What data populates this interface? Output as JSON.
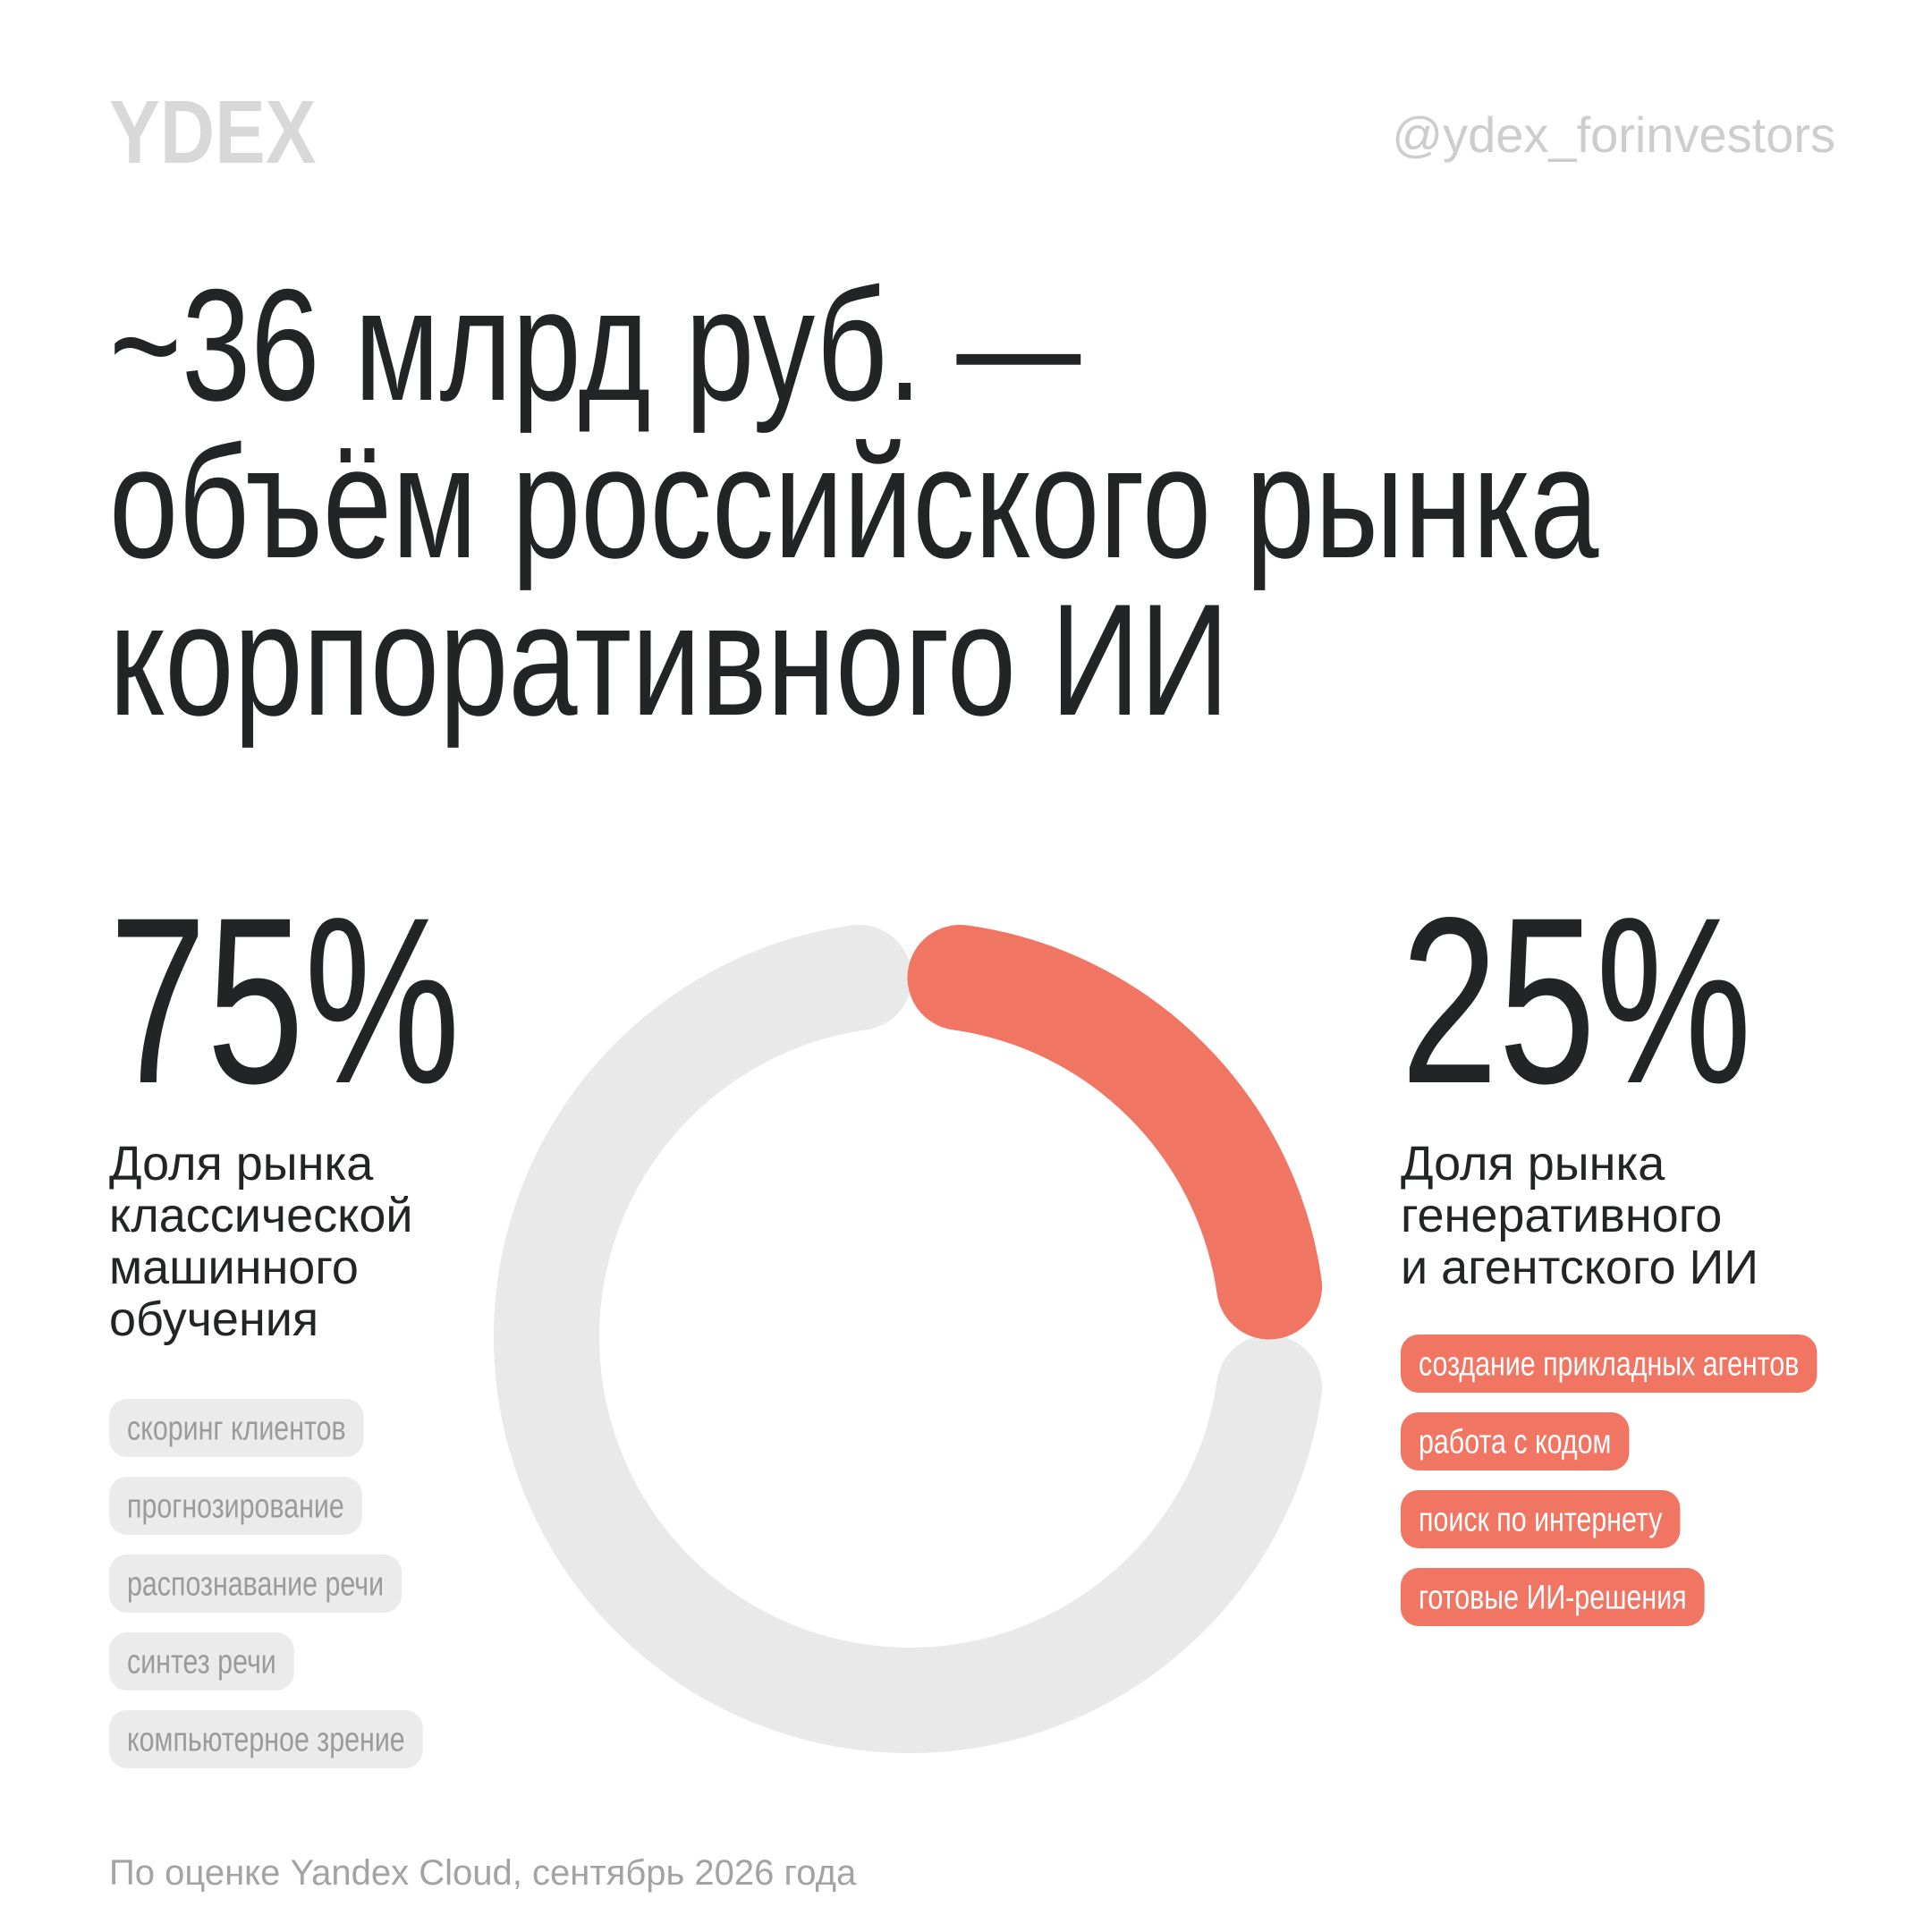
{
  "chart_data": {
    "type": "donut",
    "logo": "YDEX",
    "handle": "@ydex_forinvestors",
    "title": [
      "~36 млрд руб. —",
      "объём российского рынка",
      "корпоративного ИИ"
    ],
    "values": [
      75,
      25
    ],
    "value_labels": [
      "75%",
      "25%"
    ],
    "colors": [
      "#e8e9e8",
      "#f07563"
    ],
    "labels": [
      [
        "Доля рынка",
        "классической",
        "машинного",
        "обучения"
      ],
      [
        "Доля рынка",
        "генеративного",
        "и агентского ИИ"
      ]
    ],
    "tags": [
      [
        "скоринг клиентов",
        "прогнозирование",
        "распознавание речи",
        "синтез речи",
        "компьютерное зрение"
      ],
      [
        "создание прикладных агентов",
        "работа с кодом",
        "поиск по интернету",
        "готовые ИИ-решения"
      ]
    ],
    "source": "По оценке Yandex Cloud, сентябрь 2026 года"
  }
}
